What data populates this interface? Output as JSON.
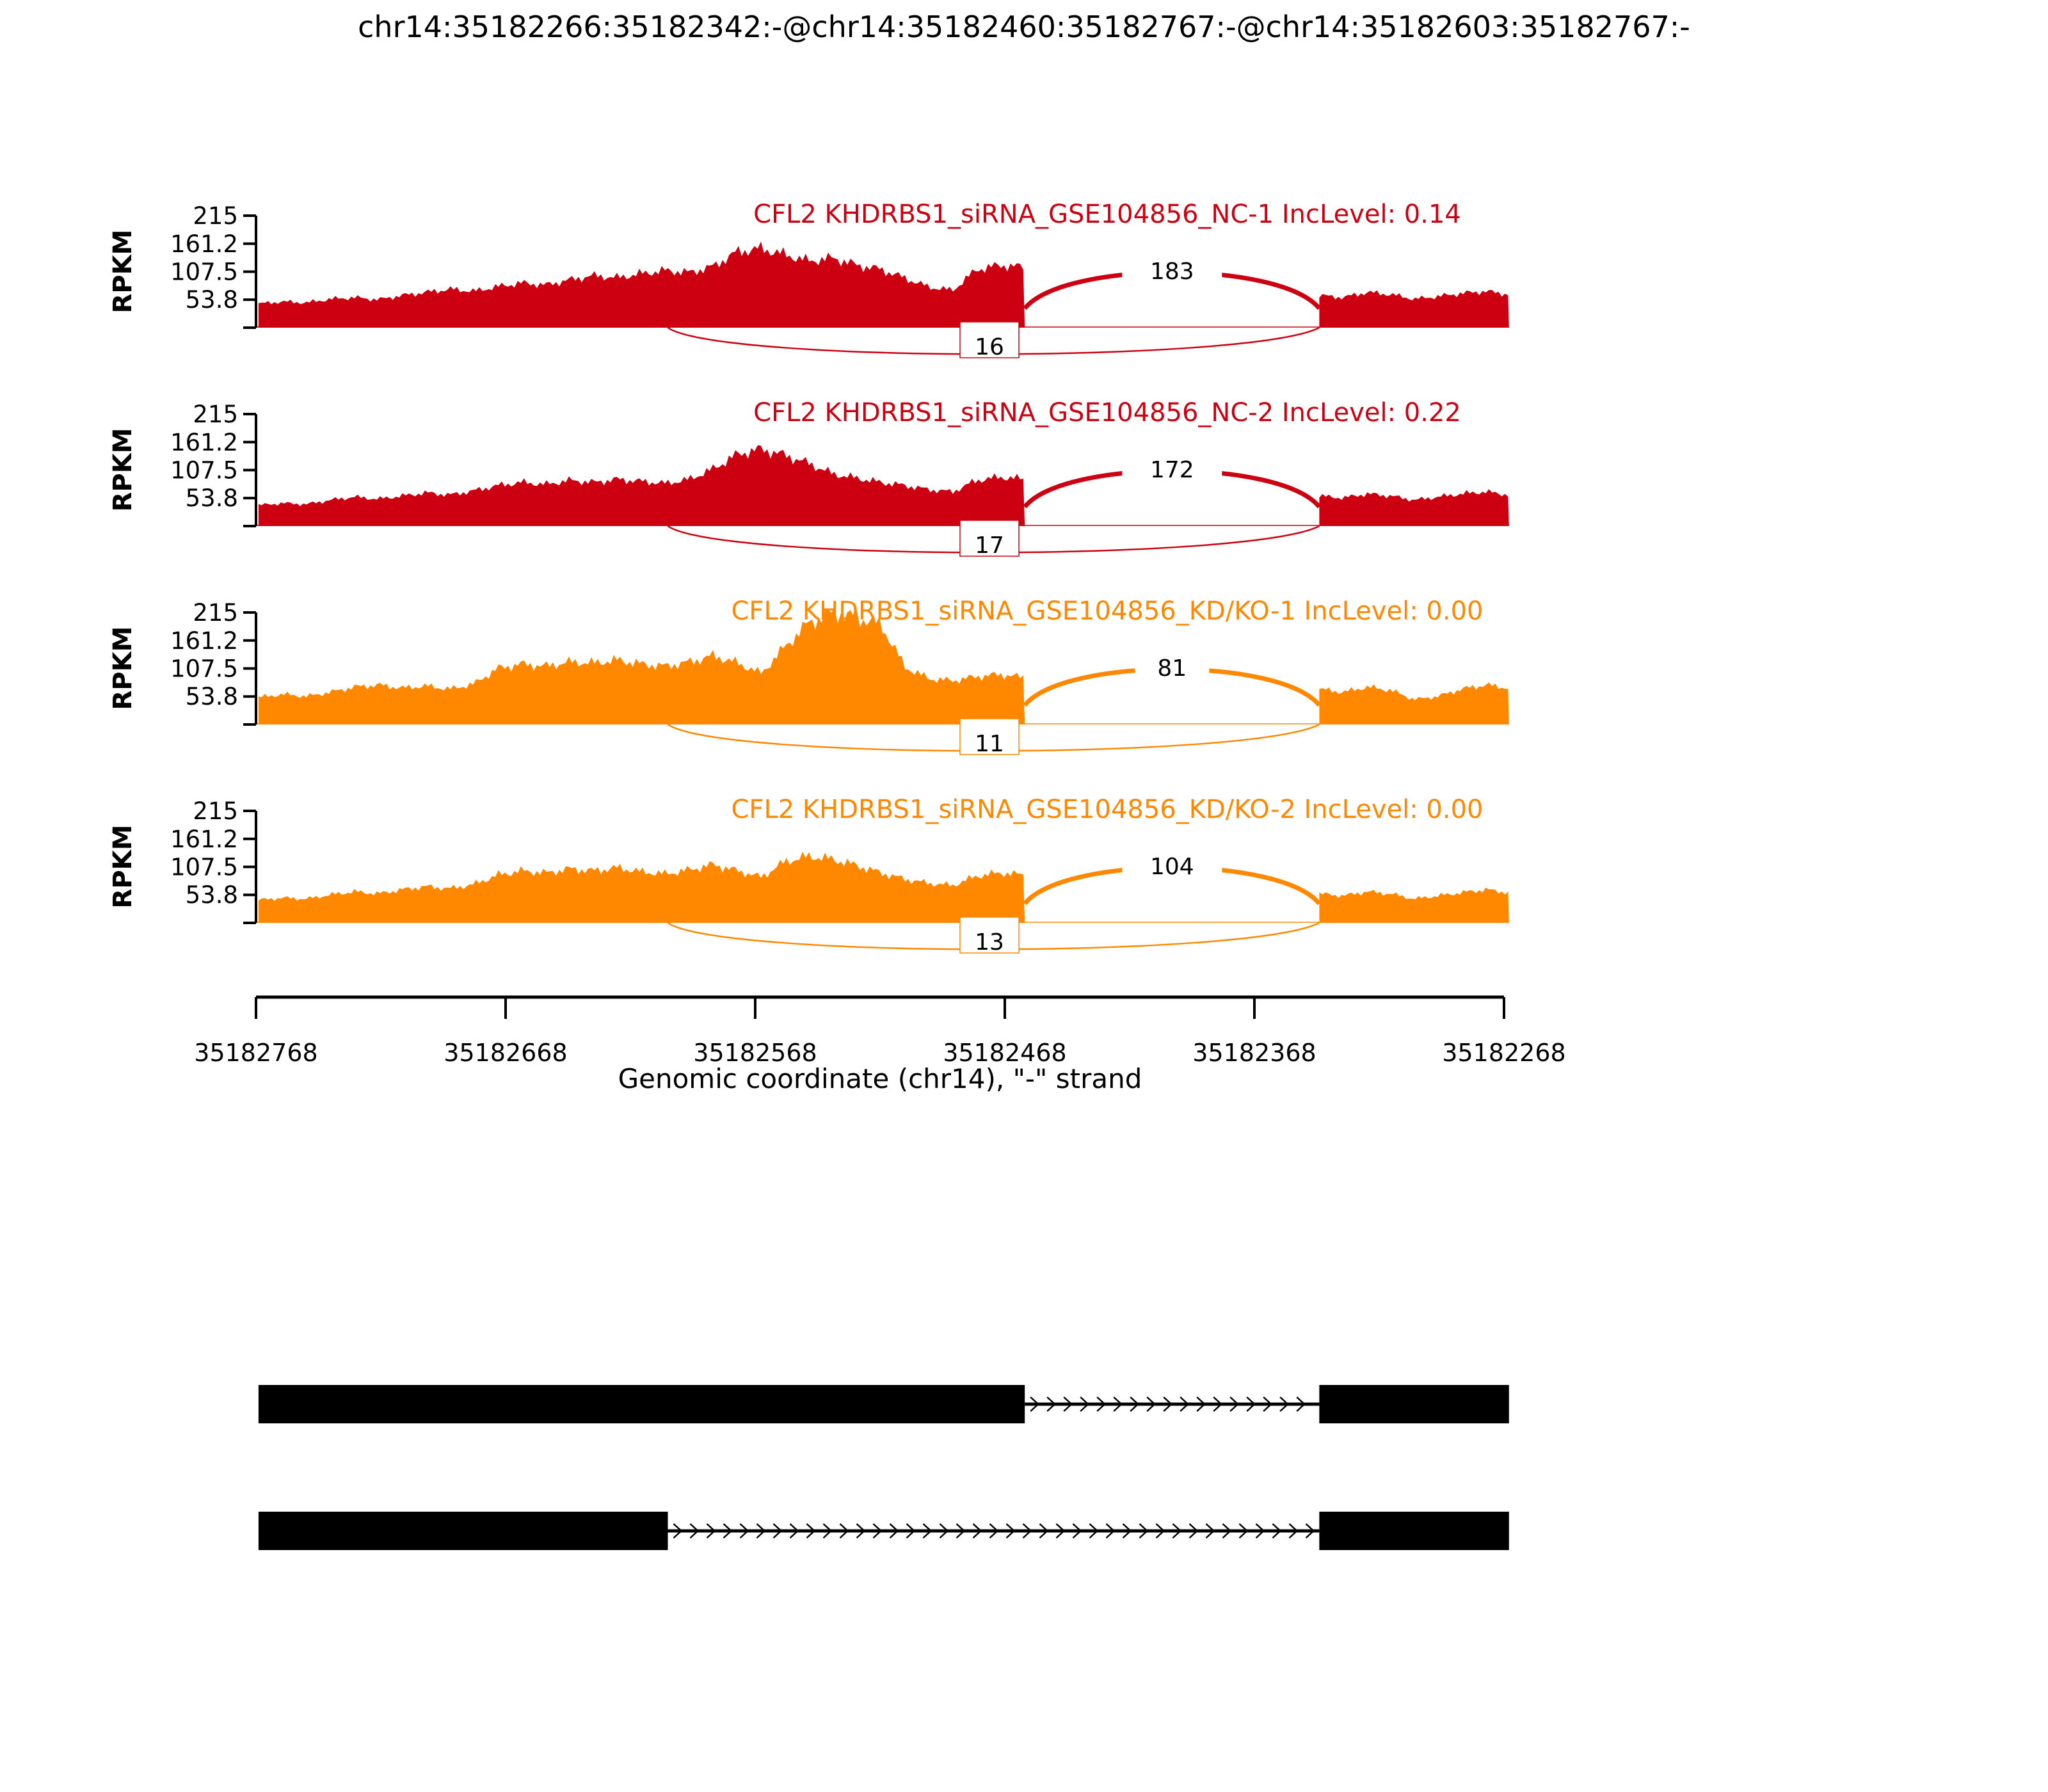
{
  "title": "chr14:35182266:35182342:-@chr14:35182460:35182767:-@chr14:35182603:35182767:-",
  "chart_data": {
    "type": "area",
    "subtype": "sashimi-plot",
    "title": "chr14:35182266:35182342:-@chr14:35182460:35182767:-@chr14:35182603:35182767:-",
    "xlabel": "Genomic coordinate (chr14), \"-\" strand",
    "ylabel": "RPKM",
    "x_ticks": [
      35182768,
      35182668,
      35182568,
      35182468,
      35182368,
      35182268
    ],
    "x_tick_labels": [
      "35182768",
      "35182668",
      "35182568",
      "35182468",
      "35182368",
      "35182268"
    ],
    "x_start": 35182768,
    "x_end": 35182268,
    "x_reversed": true,
    "strand": "-",
    "chromosome": "chr14",
    "y_ticks": [
      53.8,
      107.5,
      161.2,
      215
    ],
    "y_tick_labels": [
      "53.8",
      "107.5",
      "161.2",
      "215"
    ],
    "y_max": 215,
    "grid": false,
    "colors": {
      "red": "#CC0011",
      "orange": "#FF8800",
      "black": "#000000"
    },
    "tracks": [
      {
        "label": "CFL2 KHDRBS1_siRNA_GSE104856_NC-1 IncLevel: 0.14",
        "sample": "NC-1",
        "inc_level": "0.14",
        "color": "#CC0011",
        "junctions": [
          {
            "count": 183,
            "start": 35182460,
            "end": 35182342,
            "arc": "top"
          },
          {
            "count": 16,
            "start": 35182603,
            "end": 35182342,
            "arc": "bottom"
          }
        ],
        "coverage_segments": [
          {
            "start": 35182767,
            "end": 35182460,
            "rpkm": [
              46,
              50,
              48,
              55,
              58,
              54,
              62,
              68,
              74,
              70,
              79,
              86,
              82,
              92,
              100,
              96,
              104,
              110,
              106,
              118,
              146,
              152,
              140,
              128,
              134,
              120,
              112,
              95,
              78,
              72,
              112,
              120,
              116
            ]
          },
          {
            "start": 35182342,
            "end": 35182266,
            "rpkm": [
              62,
              58,
              68,
              64,
              55,
              60,
              66,
              70,
              64
            ]
          }
        ]
      },
      {
        "label": "CFL2 KHDRBS1_siRNA_GSE104856_NC-2 IncLevel: 0.22",
        "sample": "NC-2",
        "inc_level": "0.22",
        "color": "#CC0011",
        "junctions": [
          {
            "count": 172,
            "start": 35182460,
            "end": 35182342,
            "arc": "top"
          },
          {
            "count": 17,
            "start": 35182603,
            "end": 35182342,
            "arc": "bottom"
          }
        ],
        "coverage_segments": [
          {
            "start": 35182767,
            "end": 35182460,
            "rpkm": [
              40,
              44,
              42,
              50,
              56,
              52,
              58,
              64,
              60,
              68,
              78,
              84,
              80,
              88,
              84,
              90,
              86,
              82,
              90,
              110,
              138,
              148,
              136,
              120,
              100,
              92,
              84,
              78,
              70,
              66,
              88,
              94,
              90
            ]
          },
          {
            "start": 35182342,
            "end": 35182266,
            "rpkm": [
              58,
              54,
              62,
              58,
              50,
              56,
              62,
              66,
              60
            ]
          }
        ]
      },
      {
        "label": "CFL2 KHDRBS1_siRNA_GSE104856_KD/KO-1 IncLevel: 0.00",
        "sample": "KD/KO-1",
        "inc_level": "0.00",
        "color": "#FF8800",
        "junctions": [
          {
            "count": 81,
            "start": 35182460,
            "end": 35182342,
            "arc": "top"
          },
          {
            "count": 11,
            "start": 35182603,
            "end": 35182342,
            "arc": "bottom"
          }
        ],
        "coverage_segments": [
          {
            "start": 35182767,
            "end": 35182460,
            "rpkm": [
              52,
              58,
              54,
              62,
              72,
              76,
              70,
              74,
              68,
              78,
              108,
              116,
              112,
              120,
              118,
              124,
              116,
              112,
              120,
              132,
              118,
              98,
              150,
              196,
              215,
              205,
              192,
              110,
              88,
              84,
              92,
              96,
              90
            ]
          },
          {
            "start": 35182342,
            "end": 35182266,
            "rpkm": [
              68,
              62,
              72,
              66,
              48,
              54,
              68,
              76,
              70
            ]
          }
        ]
      },
      {
        "label": "CFL2 KHDRBS1_siRNA_GSE104856_KD/KO-2 IncLevel: 0.00",
        "sample": "KD/KO-2",
        "inc_level": "0.00",
        "color": "#FF8800",
        "junctions": [
          {
            "count": 104,
            "start": 35182460,
            "end": 35182342,
            "arc": "top"
          },
          {
            "count": 13,
            "start": 35182603,
            "end": 35182342,
            "arc": "bottom"
          }
        ],
        "coverage_segments": [
          {
            "start": 35182767,
            "end": 35182460,
            "rpkm": [
              44,
              48,
              46,
              54,
              60,
              56,
              64,
              70,
              66,
              74,
              92,
              100,
              96,
              104,
              100,
              106,
              98,
              94,
              102,
              112,
              100,
              88,
              118,
              128,
              122,
              110,
              96,
              84,
              76,
              72,
              90,
              96,
              92
            ]
          },
          {
            "start": 35182342,
            "end": 35182266,
            "rpkm": [
              56,
              52,
              60,
              56,
              46,
              52,
              58,
              64,
              58
            ]
          }
        ]
      }
    ],
    "gene_models": [
      {
        "exons": [
          [
            35182460,
            35182767
          ],
          [
            35182266,
            35182342
          ]
        ],
        "intron": [
          35182342,
          35182460
        ]
      },
      {
        "exons": [
          [
            35182603,
            35182767
          ],
          [
            35182266,
            35182342
          ]
        ],
        "intron": [
          35182342,
          35182603
        ]
      }
    ]
  }
}
